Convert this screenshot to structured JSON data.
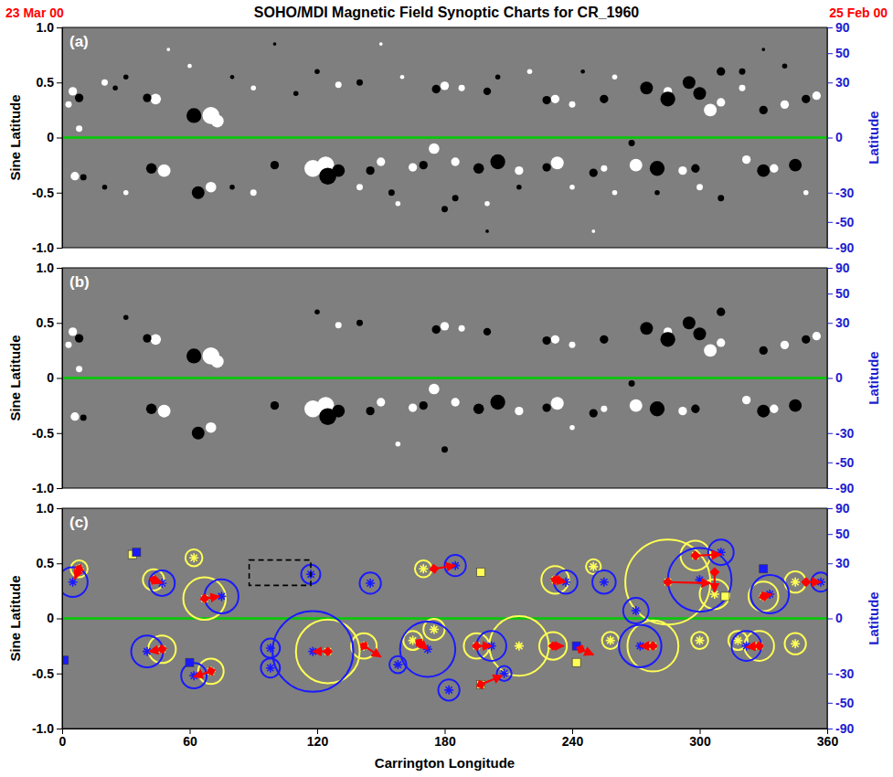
{
  "chart_data": [
    {
      "type": "scatter",
      "title": "SOHO/MDI Magnetic Field Synoptic Charts for CR_1960",
      "annotations": [
        {
          "text": "23 Mar 00",
          "color": "#ff0000"
        },
        {
          "text": "25 Feb 00",
          "color": "#ff0000"
        }
      ],
      "panel_label": "(a)",
      "y_label": "Sine Latitude",
      "y2_label": "Latitude",
      "xlim": [
        0,
        360
      ],
      "ylim": [
        -1,
        1
      ],
      "yticks": [
        {
          "value": -1,
          "label": "-1.0"
        },
        -0.5,
        0,
        0.5,
        {
          "value": 1,
          "label": "1.0"
        }
      ],
      "y2lim": [
        -90,
        90
      ],
      "y2ticks": [
        -90,
        -50,
        -30,
        0,
        30,
        50,
        90
      ],
      "tick_labels": "y",
      "reference_lines": [
        {
          "value": 0,
          "color": "#00cc00"
        }
      ],
      "series": [
        {
          "color": "#ffffff",
          "x": [
            5,
            44,
            70,
            73,
            130,
            180,
            188,
            232,
            240,
            285,
            305,
            310,
            340,
            355,
            6,
            48,
            70,
            118,
            124,
            150,
            165,
            175,
            185,
            215,
            233,
            255,
            270,
            292,
            322,
            335,
            8,
            3,
            158,
            240,
            20,
            60,
            90,
            160,
            220,
            260,
            320,
            30,
            90,
            140,
            200,
            260,
            300,
            350,
            50,
            150,
            250
          ],
          "values": [
            0.42,
            0.35,
            0.2,
            0.15,
            0.48,
            0.47,
            0.45,
            0.35,
            0.3,
            0.42,
            0.25,
            0.32,
            0.3,
            0.38,
            -0.35,
            -0.3,
            -0.45,
            -0.28,
            -0.25,
            -0.22,
            -0.27,
            -0.1,
            -0.22,
            -0.3,
            -0.23,
            -0.28,
            -0.25,
            -0.3,
            -0.2,
            -0.28,
            0.08,
            0.3,
            -0.6,
            -0.45,
            0.5,
            0.65,
            0.45,
            0.55,
            0.6,
            0.55,
            0.45,
            -0.5,
            -0.5,
            -0.45,
            -0.6,
            -0.5,
            -0.45,
            -0.5,
            0.8,
            0.85,
            -0.85
          ],
          "sizes": [
            2,
            2.5,
            4,
            3,
            1.5,
            2,
            1.5,
            2,
            1.5,
            2,
            3,
            2,
            2,
            2,
            2,
            3,
            2.5,
            4,
            4,
            2,
            2,
            2.5,
            2,
            2,
            3,
            1.5,
            3,
            2,
            2,
            2,
            1.5,
            1.5,
            1.2,
            1.2,
            1.5,
            1,
            1.2,
            1,
            1.2,
            1.2,
            1.5,
            1.2,
            1.5,
            1.5,
            1.2,
            1.2,
            1.5,
            1.2,
            0.8,
            0.8,
            0.8
          ]
        },
        {
          "color": "#000000",
          "x": [
            8,
            40,
            62,
            30,
            140,
            176,
            200,
            228,
            255,
            275,
            285,
            295,
            300,
            310,
            330,
            350,
            10,
            42,
            64,
            100,
            125,
            130,
            145,
            170,
            180,
            196,
            205,
            228,
            250,
            280,
            298,
            330,
            345,
            120,
            268,
            25,
            80,
            110,
            205,
            245,
            320,
            340,
            20,
            80,
            155,
            185,
            215,
            280,
            310,
            100,
            200,
            330
          ],
          "values": [
            0.36,
            0.36,
            0.2,
            0.55,
            0.5,
            0.44,
            0.42,
            0.34,
            0.35,
            0.45,
            0.35,
            0.5,
            0.4,
            0.6,
            0.25,
            0.35,
            -0.36,
            -0.28,
            -0.5,
            -0.25,
            -0.35,
            -0.3,
            -0.3,
            -0.25,
            -0.65,
            -0.28,
            -0.22,
            -0.27,
            -0.32,
            -0.28,
            -0.28,
            -0.3,
            -0.25,
            0.6,
            -0.05,
            0.45,
            0.55,
            0.4,
            0.55,
            0.6,
            0.6,
            0.65,
            -0.45,
            -0.45,
            -0.5,
            -0.55,
            -0.45,
            -0.5,
            -0.55,
            0.85,
            -0.85,
            0.8
          ],
          "sizes": [
            2,
            2,
            3.5,
            1.2,
            1.5,
            2,
            1.8,
            2,
            2,
            3,
            3.5,
            3,
            3,
            2,
            2,
            2,
            1.5,
            2.5,
            3,
            2,
            4,
            3,
            2,
            2,
            1.5,
            2.5,
            3.5,
            2,
            2,
            3.5,
            2,
            3,
            3,
            1.2,
            1.5,
            1.2,
            1,
            1.2,
            1.2,
            1,
            1.5,
            1.2,
            1.2,
            1.2,
            1.5,
            1.5,
            1.2,
            1.2,
            1.5,
            0.8,
            0.8,
            0.8
          ]
        }
      ]
    },
    {
      "type": "scatter",
      "panel_label": "(b)",
      "y_label": "Sine Latitude",
      "y2_label": "Latitude",
      "xlim": [
        0,
        360
      ],
      "ylim": [
        -1,
        1
      ],
      "yticks": [
        {
          "value": -1,
          "label": "-1.0"
        },
        -0.5,
        0,
        0.5,
        {
          "value": 1,
          "label": "1.0"
        }
      ],
      "y2lim": [
        -90,
        90
      ],
      "y2ticks": [
        -90,
        -50,
        -30,
        0,
        30,
        50,
        90
      ],
      "tick_labels": "y",
      "reference_lines": [
        {
          "value": 0,
          "color": "#00cc00"
        }
      ],
      "series": [
        {
          "color": "#ffffff",
          "x": [
            5,
            44,
            70,
            73,
            130,
            180,
            188,
            232,
            240,
            285,
            305,
            310,
            340,
            355,
            6,
            48,
            70,
            118,
            124,
            150,
            165,
            175,
            185,
            215,
            233,
            255,
            270,
            292,
            322,
            335,
            8,
            3,
            158,
            240
          ],
          "values": [
            0.42,
            0.35,
            0.2,
            0.15,
            0.48,
            0.47,
            0.45,
            0.35,
            0.3,
            0.42,
            0.25,
            0.32,
            0.3,
            0.38,
            -0.35,
            -0.3,
            -0.45,
            -0.28,
            -0.25,
            -0.22,
            -0.27,
            -0.1,
            -0.22,
            -0.3,
            -0.23,
            -0.28,
            -0.25,
            -0.3,
            -0.2,
            -0.28,
            0.08,
            0.3,
            -0.6,
            -0.45
          ],
          "sizes": [
            2,
            2.5,
            4,
            3,
            1.5,
            2,
            1.5,
            2,
            1.5,
            2,
            3,
            2,
            2,
            2,
            2,
            3,
            2.5,
            4,
            4,
            2,
            2,
            2.5,
            2,
            2,
            3,
            1.5,
            3,
            2,
            2,
            2,
            1.5,
            1.5,
            1.2,
            1.2
          ]
        },
        {
          "color": "#000000",
          "x": [
            8,
            40,
            62,
            30,
            140,
            176,
            200,
            228,
            255,
            275,
            285,
            295,
            300,
            310,
            330,
            350,
            10,
            42,
            64,
            100,
            125,
            130,
            145,
            170,
            180,
            196,
            205,
            228,
            250,
            280,
            298,
            330,
            345,
            120,
            268
          ],
          "values": [
            0.36,
            0.36,
            0.2,
            0.55,
            0.5,
            0.44,
            0.42,
            0.34,
            0.35,
            0.45,
            0.35,
            0.5,
            0.4,
            0.6,
            0.25,
            0.35,
            -0.36,
            -0.28,
            -0.5,
            -0.25,
            -0.35,
            -0.3,
            -0.3,
            -0.25,
            -0.65,
            -0.28,
            -0.22,
            -0.27,
            -0.32,
            -0.28,
            -0.28,
            -0.3,
            -0.25,
            0.6,
            -0.05
          ],
          "sizes": [
            2,
            2,
            3.5,
            1.2,
            1.5,
            2,
            1.8,
            2,
            2,
            3,
            3.5,
            3,
            3,
            2,
            2,
            2,
            1.5,
            2.5,
            3,
            2,
            4,
            3,
            2,
            2,
            1.5,
            2.5,
            3.5,
            2,
            2,
            3.5,
            2,
            3,
            3,
            1.2,
            1.5
          ]
        }
      ]
    },
    {
      "type": "scatter",
      "panel_label": "(c)",
      "y_label": "Sine Latitude",
      "y2_label": "Latitude",
      "x_label": "Carrington Longitude",
      "xlim": [
        0,
        360
      ],
      "xticks": [
        0,
        60,
        120,
        180,
        240,
        300,
        360
      ],
      "ylim": [
        -1,
        1
      ],
      "yticks": [
        {
          "value": -1,
          "label": "-1.0"
        },
        -0.5,
        0,
        0.5,
        {
          "value": 1,
          "label": "1.0"
        }
      ],
      "y2lim": [
        -90,
        90
      ],
      "y2ticks": [
        -90,
        -50,
        -30,
        0,
        30,
        50,
        90
      ],
      "reference_lines": [
        {
          "value": 0,
          "color": "#00cc00"
        }
      ],
      "series": [
        {
          "color": "#ffff55",
          "marker": "circle",
          "x": [
            8,
            43,
            62,
            67,
            47,
            70,
            125,
            142,
            165,
            175,
            170,
            195,
            215,
            232,
            231,
            250,
            258,
            285,
            298,
            307,
            278,
            300,
            318,
            330,
            328,
            345,
            345
          ],
          "values": [
            0.45,
            0.35,
            0.55,
            0.18,
            -0.28,
            -0.48,
            -0.3,
            -0.25,
            -0.2,
            -0.1,
            0.45,
            -0.25,
            -0.25,
            0.35,
            -0.25,
            0.47,
            -0.2,
            0.33,
            0.57,
            0.22,
            -0.25,
            -0.2,
            -0.2,
            0.2,
            -0.25,
            0.33,
            -0.23
          ],
          "sizes": [
            4,
            5,
            4,
            10,
            6.5,
            6,
            15,
            6,
            4.5,
            5,
            4,
            6,
            14,
            6.5,
            6.5,
            3.5,
            4,
            20,
            7,
            7,
            12,
            4,
            4.5,
            7,
            7,
            5,
            5
          ]
        },
        {
          "color": "#1a1aff",
          "marker": "circle",
          "x": [
            5,
            47,
            75,
            40,
            62,
            98,
            98,
            117,
            118,
            145,
            158,
            172,
            185,
            182,
            202,
            208,
            237,
            255,
            270,
            272,
            300,
            310,
            333,
            322,
            357
          ],
          "values": [
            0.33,
            0.32,
            0.2,
            -0.3,
            -0.52,
            -0.27,
            -0.45,
            0.4,
            -0.3,
            0.32,
            -0.42,
            -0.28,
            0.48,
            -0.65,
            -0.25,
            -0.5,
            0.33,
            0.33,
            0.07,
            -0.25,
            0.35,
            0.6,
            0.22,
            -0.25,
            0.33
          ],
          "sizes": [
            7,
            6,
            8,
            7.5,
            6,
            4.5,
            4.5,
            4.5,
            19,
            5,
            4,
            13,
            5,
            5,
            7,
            3.5,
            5.5,
            5.5,
            6,
            10,
            15,
            6,
            9,
            7,
            4.5
          ]
        },
        {
          "color": "#ffff55",
          "marker": "square",
          "x": [
            33,
            197,
            197,
            242,
            312
          ],
          "values": [
            0.58,
            0.42,
            -0.6,
            -0.4,
            0.2
          ]
        },
        {
          "color": "#1a1aff",
          "marker": "square",
          "x": [
            1,
            35,
            60,
            242,
            330
          ],
          "values": [
            -0.38,
            0.6,
            -0.4,
            -0.25,
            0.45
          ]
        },
        {
          "type": "arrow",
          "color": "#ff0000",
          "x": [
            8,
            43,
            67,
            47,
            70,
            125,
            142,
            175,
            168,
            195,
            197,
            232,
            231,
            244,
            278,
            285,
            298,
            307,
            328,
            330,
            350
          ],
          "values": [
            0.45,
            0.35,
            0.18,
            -0.28,
            -0.48,
            -0.3,
            -0.25,
            0.45,
            -0.22,
            -0.25,
            -0.6,
            0.35,
            -0.25,
            -0.28,
            -0.25,
            0.33,
            0.57,
            0.42,
            -0.25,
            0.2,
            0.33
          ],
          "x2": [
            6,
            47,
            74,
            41,
            62,
            118,
            150,
            185,
            172,
            202,
            207,
            237,
            236,
            250,
            272,
            305,
            310,
            307,
            322,
            334,
            357
          ],
          "values2": [
            0.36,
            0.32,
            0.2,
            -0.3,
            -0.53,
            -0.3,
            -0.35,
            0.48,
            -0.28,
            -0.25,
            -0.52,
            0.33,
            -0.25,
            -0.33,
            -0.25,
            0.32,
            0.58,
            0.24,
            -0.26,
            0.22,
            0.33
          ]
        },
        {
          "type": "box",
          "color": "#000000",
          "line_style": "dashed",
          "x": [
            88,
            117
          ],
          "values": [
            0.3,
            0.53
          ]
        }
      ]
    }
  ]
}
